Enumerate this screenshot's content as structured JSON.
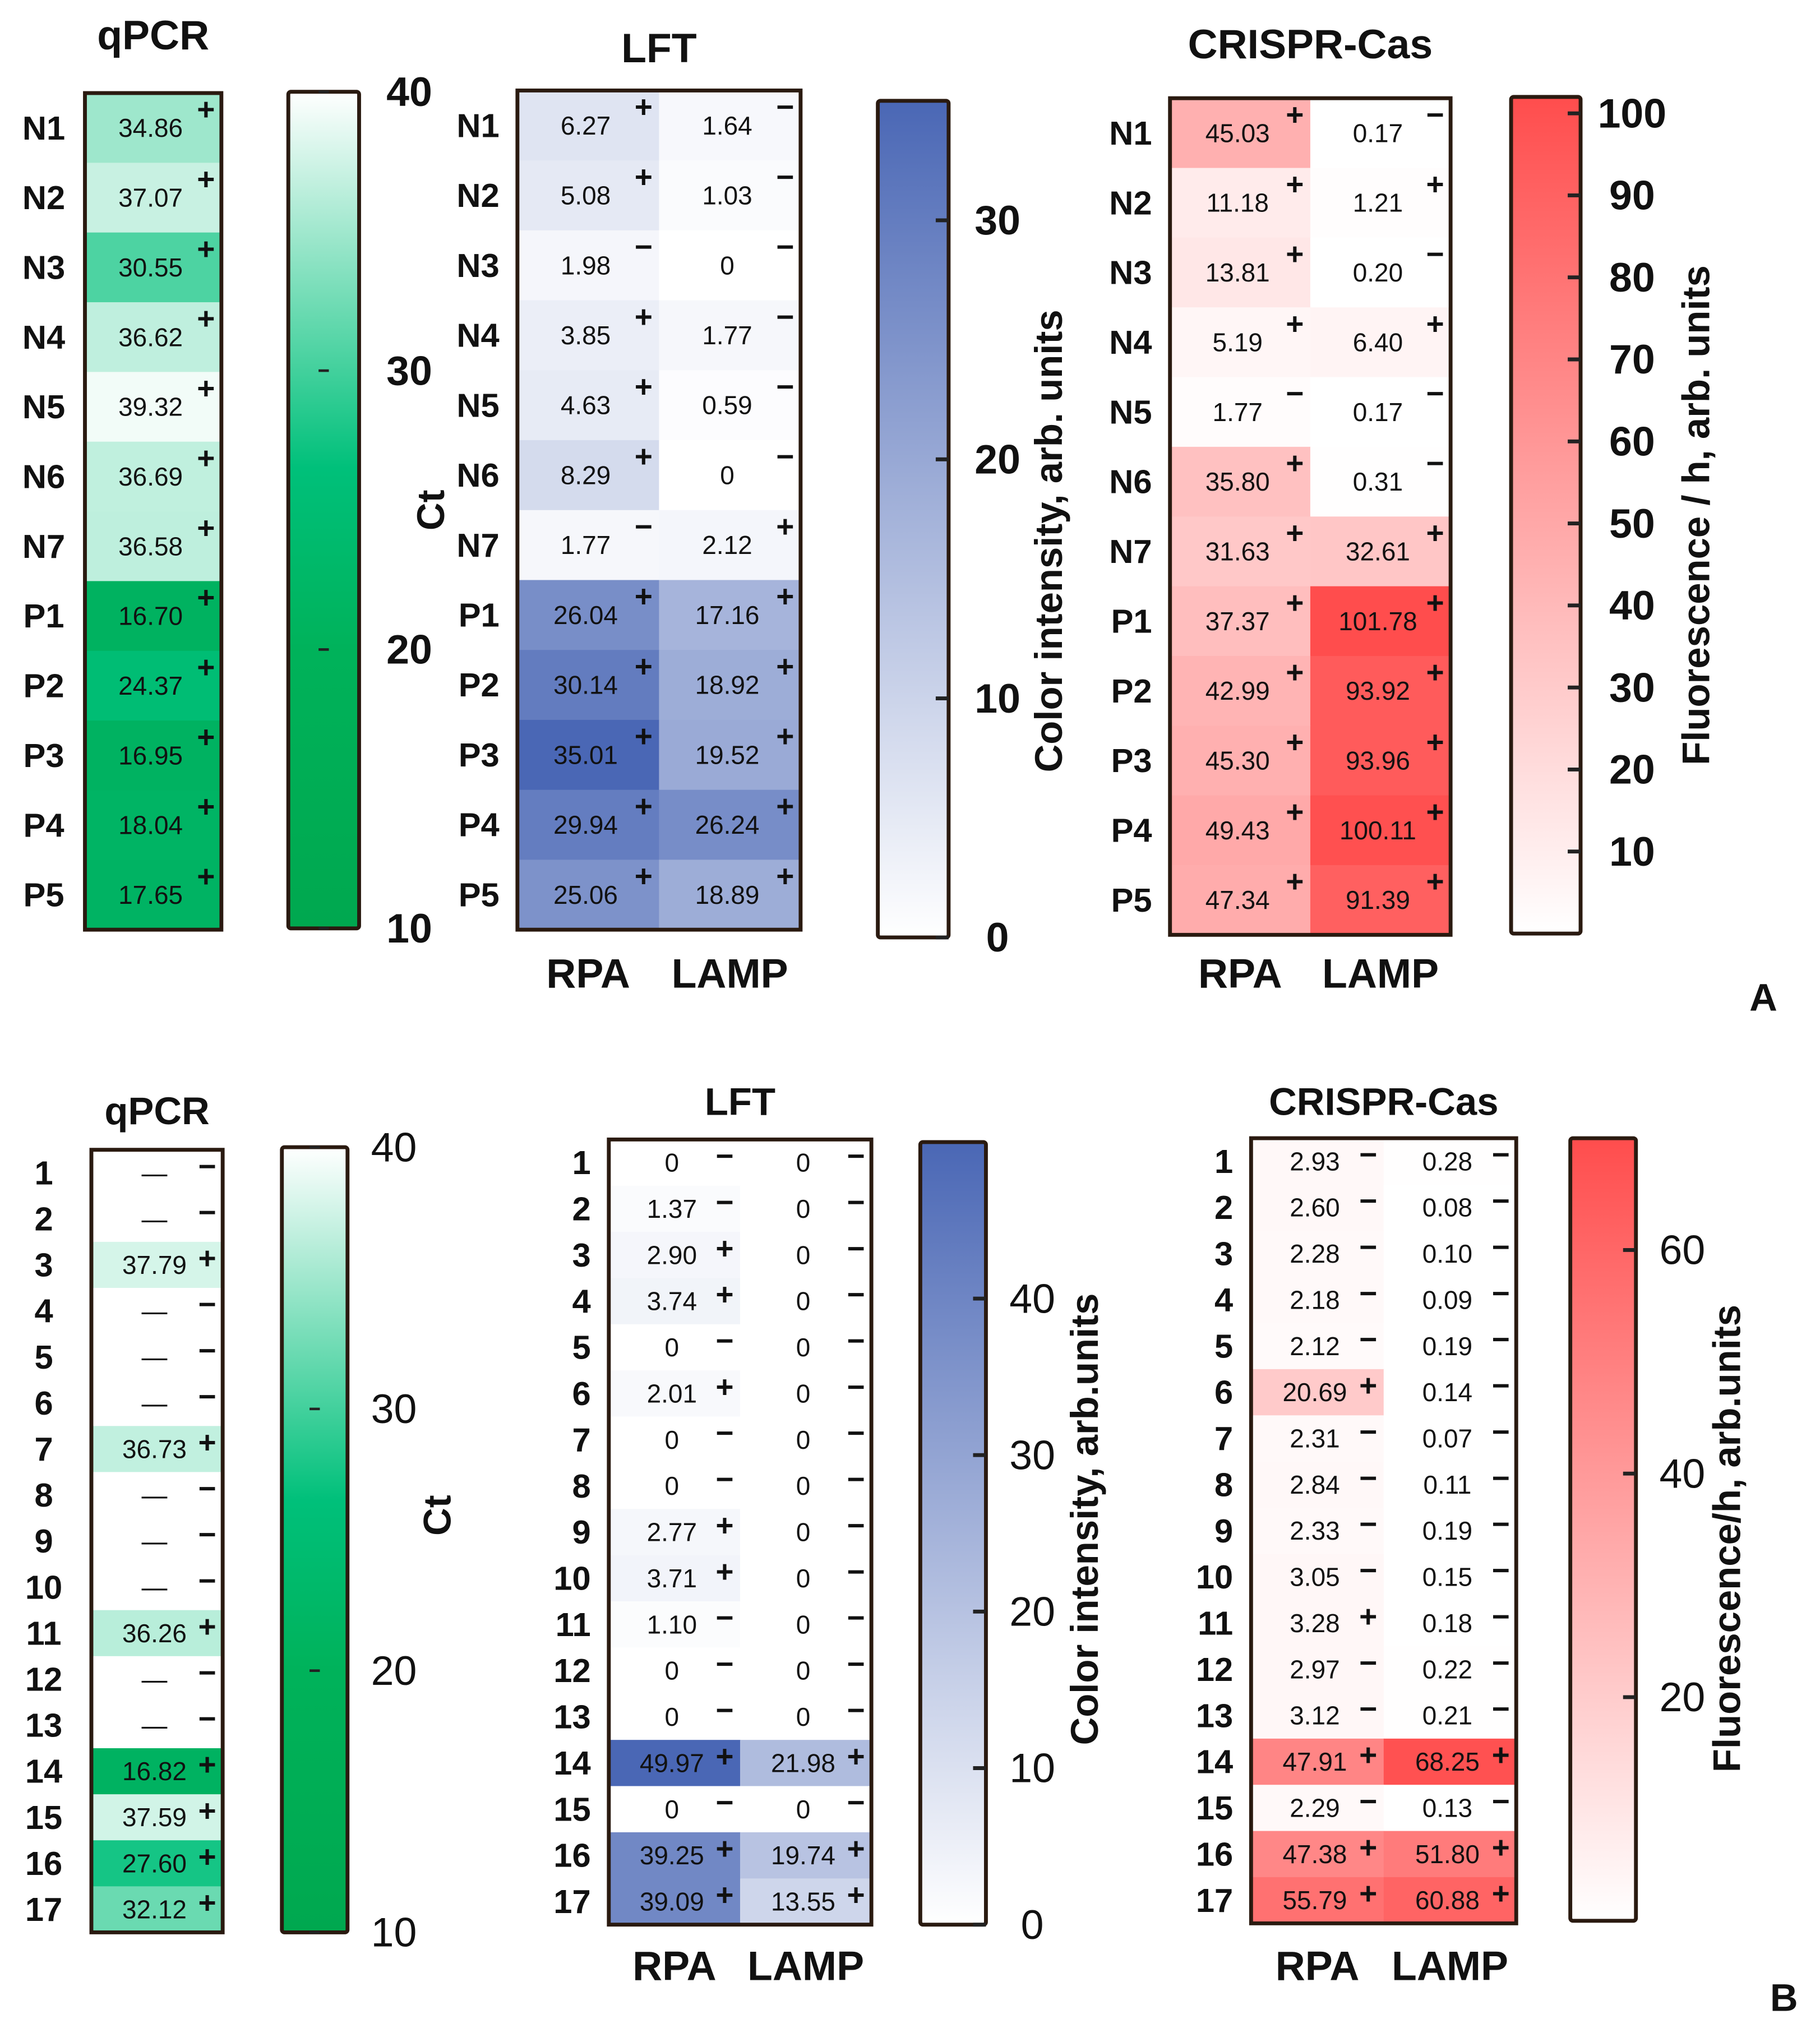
{
  "chart_data": [
    {
      "panel": "A",
      "type": "heatmap",
      "heatmaps": [
        {
          "key": "qpcr",
          "title": "qPCR",
          "rows": [
            "N1",
            "N2",
            "N3",
            "N4",
            "N5",
            "N6",
            "N7",
            "P1",
            "P2",
            "P3",
            "P4",
            "P5"
          ],
          "columns": [
            ""
          ],
          "values": [
            [
              "34.86"
            ],
            [
              "37.07"
            ],
            [
              "30.55"
            ],
            [
              "36.62"
            ],
            [
              "39.32"
            ],
            [
              "36.69"
            ],
            [
              "36.58"
            ],
            [
              "16.70"
            ],
            [
              "24.37"
            ],
            [
              "16.95"
            ],
            [
              "18.04"
            ],
            [
              "17.65"
            ]
          ],
          "signs": [
            [
              "+"
            ],
            [
              "+"
            ],
            [
              "+"
            ],
            [
              "+"
            ],
            [
              "+"
            ],
            [
              "+"
            ],
            [
              "+"
            ],
            [
              "+"
            ],
            [
              "+"
            ],
            [
              "+"
            ],
            [
              "+"
            ],
            [
              "+"
            ]
          ]
        },
        {
          "key": "lft",
          "title": "LFT",
          "rows": [
            "N1",
            "N2",
            "N3",
            "N4",
            "N5",
            "N6",
            "N7",
            "P1",
            "P2",
            "P3",
            "P4",
            "P5"
          ],
          "columns": [
            "RPA",
            "LAMP"
          ],
          "values": [
            [
              "6.27",
              "1.64"
            ],
            [
              "5.08",
              "1.03"
            ],
            [
              "1.98",
              "0"
            ],
            [
              "3.85",
              "1.77"
            ],
            [
              "4.63",
              "0.59"
            ],
            [
              "8.29",
              "0"
            ],
            [
              "1.77",
              "2.12"
            ],
            [
              "26.04",
              "17.16"
            ],
            [
              "30.14",
              "18.92"
            ],
            [
              "35.01",
              "19.52"
            ],
            [
              "29.94",
              "26.24"
            ],
            [
              "25.06",
              "18.89"
            ]
          ],
          "signs": [
            [
              "+",
              "−"
            ],
            [
              "+",
              "−"
            ],
            [
              "−",
              "−"
            ],
            [
              "+",
              "−"
            ],
            [
              "+",
              "−"
            ],
            [
              "+",
              "−"
            ],
            [
              "−",
              "+"
            ],
            [
              "+",
              "+"
            ],
            [
              "+",
              "+"
            ],
            [
              "+",
              "+"
            ],
            [
              "+",
              "+"
            ],
            [
              "+",
              "+"
            ]
          ]
        },
        {
          "key": "crispr",
          "title": "CRISPR-Cas",
          "rows": [
            "N1",
            "N2",
            "N3",
            "N4",
            "N5",
            "N6",
            "N7",
            "P1",
            "P2",
            "P3",
            "P4",
            "P5"
          ],
          "columns": [
            "RPA",
            "LAMP"
          ],
          "values": [
            [
              "45.03",
              "0.17"
            ],
            [
              "11.18",
              "1.21"
            ],
            [
              "13.81",
              "0.20"
            ],
            [
              "5.19",
              "6.40"
            ],
            [
              "1.77",
              "0.17"
            ],
            [
              "35.80",
              "0.31"
            ],
            [
              "31.63",
              "32.61"
            ],
            [
              "37.37",
              "101.78"
            ],
            [
              "42.99",
              "93.92"
            ],
            [
              "45.30",
              "93.96"
            ],
            [
              "49.43",
              "100.11"
            ],
            [
              "47.34",
              "91.39"
            ]
          ],
          "signs": [
            [
              "+",
              "−"
            ],
            [
              "+",
              "+"
            ],
            [
              "+",
              "−"
            ],
            [
              "+",
              "+"
            ],
            [
              "−",
              "−"
            ],
            [
              "+",
              "−"
            ],
            [
              "+",
              "+"
            ],
            [
              "+",
              "+"
            ],
            [
              "+",
              "+"
            ],
            [
              "+",
              "+"
            ],
            [
              "+",
              "+"
            ],
            [
              "+",
              "+"
            ]
          ]
        }
      ],
      "colorbars": [
        {
          "key": "qpcr",
          "label": "Ct",
          "range": [
            10,
            40
          ],
          "ticks": [
            "10",
            "20",
            "30",
            "40"
          ],
          "tick_values": [
            10,
            20,
            30,
            40
          ]
        },
        {
          "key": "lft",
          "label": "Color intensity, arb. units",
          "range": [
            0,
            35
          ],
          "ticks": [
            "0",
            "10",
            "20",
            "30"
          ],
          "tick_values": [
            0,
            10,
            20,
            30
          ]
        },
        {
          "key": "crispr",
          "label": "Fluorescence / h, arb. units",
          "range": [
            0,
            102
          ],
          "ticks": [
            "10",
            "20",
            "30",
            "40",
            "50",
            "60",
            "70",
            "80",
            "90",
            "100"
          ],
          "tick_values": [
            10,
            20,
            30,
            40,
            50,
            60,
            70,
            80,
            90,
            100
          ]
        }
      ]
    },
    {
      "panel": "B",
      "type": "heatmap",
      "heatmaps": [
        {
          "key": "qpcr",
          "title": "qPCR",
          "rows": [
            "1",
            "2",
            "3",
            "4",
            "5",
            "6",
            "7",
            "8",
            "9",
            "10",
            "11",
            "12",
            "13",
            "14",
            "15",
            "16",
            "17"
          ],
          "columns": [
            ""
          ],
          "values": [
            [
              "—"
            ],
            [
              "—"
            ],
            [
              "37.79"
            ],
            [
              "—"
            ],
            [
              "—"
            ],
            [
              "—"
            ],
            [
              "36.73"
            ],
            [
              "—"
            ],
            [
              "—"
            ],
            [
              "—"
            ],
            [
              "36.26"
            ],
            [
              "—"
            ],
            [
              "—"
            ],
            [
              "16.82"
            ],
            [
              "37.59"
            ],
            [
              "27.60"
            ],
            [
              "32.12"
            ]
          ],
          "signs": [
            [
              "−"
            ],
            [
              "−"
            ],
            [
              "+"
            ],
            [
              "−"
            ],
            [
              "−"
            ],
            [
              "−"
            ],
            [
              "+"
            ],
            [
              "−"
            ],
            [
              "−"
            ],
            [
              "−"
            ],
            [
              "+"
            ],
            [
              "−"
            ],
            [
              "−"
            ],
            [
              "+"
            ],
            [
              "+"
            ],
            [
              "+"
            ],
            [
              "+"
            ]
          ]
        },
        {
          "key": "lft",
          "title": "LFT",
          "rows": [
            "1",
            "2",
            "3",
            "4",
            "5",
            "6",
            "7",
            "8",
            "9",
            "10",
            "11",
            "12",
            "13",
            "14",
            "15",
            "16",
            "17"
          ],
          "columns": [
            "RPA",
            "LAMP"
          ],
          "values": [
            [
              "0",
              "0"
            ],
            [
              "1.37",
              "0"
            ],
            [
              "2.90",
              "0"
            ],
            [
              "3.74",
              "0"
            ],
            [
              "0",
              "0"
            ],
            [
              "2.01",
              "0"
            ],
            [
              "0",
              "0"
            ],
            [
              "0",
              "0"
            ],
            [
              "2.77",
              "0"
            ],
            [
              "3.71",
              "0"
            ],
            [
              "1.10",
              "0"
            ],
            [
              "0",
              "0"
            ],
            [
              "0",
              "0"
            ],
            [
              "49.97",
              "21.98"
            ],
            [
              "0",
              "0"
            ],
            [
              "39.25",
              "19.74"
            ],
            [
              "39.09",
              "13.55"
            ]
          ],
          "signs": [
            [
              "−",
              "−"
            ],
            [
              "−",
              "−"
            ],
            [
              "+",
              "−"
            ],
            [
              "+",
              "−"
            ],
            [
              "−",
              "−"
            ],
            [
              "+",
              "−"
            ],
            [
              "−",
              "−"
            ],
            [
              "−",
              "−"
            ],
            [
              "+",
              "−"
            ],
            [
              "+",
              "−"
            ],
            [
              "−",
              "−"
            ],
            [
              "−",
              "−"
            ],
            [
              "−",
              "−"
            ],
            [
              "+",
              "+"
            ],
            [
              "−",
              "−"
            ],
            [
              "+",
              "+"
            ],
            [
              "+",
              "+"
            ]
          ]
        },
        {
          "key": "crispr",
          "title": "CRISPR-Cas",
          "rows": [
            "1",
            "2",
            "3",
            "4",
            "5",
            "6",
            "7",
            "8",
            "9",
            "10",
            "11",
            "12",
            "13",
            "14",
            "15",
            "16",
            "17"
          ],
          "columns": [
            "RPA",
            "LAMP"
          ],
          "values": [
            [
              "2.93",
              "0.28"
            ],
            [
              "2.60",
              "0.08"
            ],
            [
              "2.28",
              "0.10"
            ],
            [
              "2.18",
              "0.09"
            ],
            [
              "2.12",
              "0.19"
            ],
            [
              "20.69",
              "0.14"
            ],
            [
              "2.31",
              "0.07"
            ],
            [
              "2.84",
              "0.11"
            ],
            [
              "2.33",
              "0.19"
            ],
            [
              "3.05",
              "0.15"
            ],
            [
              "3.28",
              "0.18"
            ],
            [
              "2.97",
              "0.22"
            ],
            [
              "3.12",
              "0.21"
            ],
            [
              "47.91",
              "68.25"
            ],
            [
              "2.29",
              "0.13"
            ],
            [
              "47.38",
              "51.80"
            ],
            [
              "55.79",
              "60.88"
            ]
          ],
          "signs": [
            [
              "−",
              "−"
            ],
            [
              "−",
              "−"
            ],
            [
              "−",
              "−"
            ],
            [
              "−",
              "−"
            ],
            [
              "−",
              "−"
            ],
            [
              "+",
              "−"
            ],
            [
              "−",
              "−"
            ],
            [
              "−",
              "−"
            ],
            [
              "−",
              "−"
            ],
            [
              "−",
              "−"
            ],
            [
              "+",
              "−"
            ],
            [
              "−",
              "−"
            ],
            [
              "−",
              "−"
            ],
            [
              "+",
              "+"
            ],
            [
              "−",
              "−"
            ],
            [
              "+",
              "+"
            ],
            [
              "+",
              "+"
            ]
          ]
        }
      ],
      "colorbars": [
        {
          "key": "qpcr",
          "label": "Ct",
          "range": [
            10,
            40
          ],
          "ticks": [
            "10",
            "20",
            "30",
            "40"
          ],
          "tick_values": [
            10,
            20,
            30,
            40
          ]
        },
        {
          "key": "lft",
          "label": "Color intensity, arb.units",
          "range": [
            0,
            50
          ],
          "ticks": [
            "0",
            "10",
            "20",
            "30",
            "40"
          ],
          "tick_values": [
            0,
            10,
            20,
            30,
            40
          ]
        },
        {
          "key": "crispr",
          "label": "Fluorescence/h, arb.units",
          "range": [
            0,
            70
          ],
          "ticks": [
            "20",
            "40",
            "60"
          ],
          "tick_values": [
            20,
            40,
            60
          ]
        }
      ]
    }
  ],
  "colors": {
    "qpcr_low": "#ffffff",
    "qpcr_mid": "#00c07a",
    "qpcr_high": "#00a84f",
    "lft_low": "#ffffff",
    "lft_high": "#4a67b5",
    "crispr_low": "#ffffff",
    "crispr_high": "#ff4d4d",
    "frame": "#2a1a10",
    "text": "#111111"
  }
}
